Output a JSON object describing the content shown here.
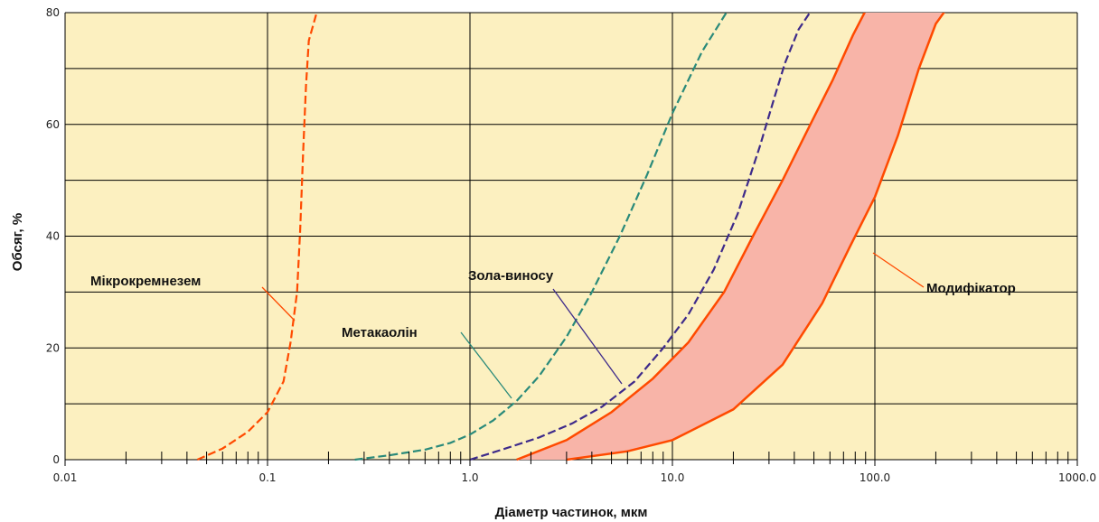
{
  "chart_data": {
    "type": "line",
    "title": "",
    "xlabel": "Діаметр частинок, мкм",
    "ylabel": "Обсяг, %",
    "x_scale": "log",
    "xlim": [
      0.01,
      1000.0
    ],
    "ylim": [
      0,
      80
    ],
    "x_tick_labels": [
      {
        "value": 0.01,
        "label": "0.01"
      },
      {
        "value": 0.1,
        "label": "0.1"
      },
      {
        "value": 1.0,
        "label": "1.0"
      },
      {
        "value": 10.0,
        "label": "10.0"
      },
      {
        "value": 100.0,
        "label": "100.0"
      },
      {
        "value": 1000.0,
        "label": "1000.0"
      }
    ],
    "y_tick_labels": [
      {
        "value": 0,
        "label": "0"
      },
      {
        "value": 20,
        "label": "20"
      },
      {
        "value": 40,
        "label": "40"
      },
      {
        "value": 60,
        "label": "60"
      },
      {
        "value": 80,
        "label": "80"
      }
    ],
    "y_gridlines": [
      0,
      10,
      20,
      30,
      40,
      50,
      60,
      70,
      80
    ],
    "grid": true,
    "background_color": "#fcf0c0",
    "series": [
      {
        "name": "Мікрокремнезем",
        "color": "#ff4a00",
        "style": "dashed",
        "x": [
          0.045,
          0.06,
          0.08,
          0.1,
          0.12,
          0.13,
          0.14,
          0.145,
          0.15,
          0.155,
          0.16,
          0.175,
          0.19
        ],
        "y": [
          0,
          2,
          5,
          8.5,
          14,
          21,
          30,
          41,
          55,
          67,
          75,
          80,
          82
        ]
      },
      {
        "name": "Метакаолін",
        "color": "#2a8a7a",
        "style": "dashed",
        "x": [
          0.27,
          0.4,
          0.6,
          0.8,
          1.0,
          1.3,
          1.7,
          2.2,
          3.0,
          4.0,
          5.5,
          7.5,
          10.0,
          14.0,
          20.0
        ],
        "y": [
          0,
          0.8,
          1.8,
          3,
          4.5,
          7,
          10.5,
          15,
          22,
          30,
          40,
          51,
          62,
          73,
          82
        ]
      },
      {
        "name": "Зола-виносу",
        "color": "#3d2a8a",
        "style": "dashed",
        "x": [
          1.0,
          1.5,
          2.2,
          3.2,
          4.5,
          6.5,
          9.0,
          12.0,
          16.0,
          21.0,
          27.0,
          32.0,
          36.0,
          42.0,
          52.0
        ],
        "y": [
          0,
          2,
          4,
          6.5,
          9.5,
          14,
          20,
          26,
          34,
          44,
          56,
          65,
          71,
          77,
          82
        ]
      },
      {
        "name": "Модифікатор",
        "color": "#ff4a00",
        "style": "solid",
        "fill_color": "#f8b4a8",
        "upper_x": [
          1.7,
          3.0,
          5.0,
          8.0,
          12.0,
          18.0,
          25.0,
          35.0,
          48.0,
          62.0,
          78.0,
          95.0
        ],
        "upper_y": [
          0,
          3.5,
          8.5,
          14.5,
          21,
          30,
          40,
          50,
          60,
          68,
          76,
          82
        ],
        "lower_x": [
          3.0,
          6.0,
          10.0,
          20.0,
          35.0,
          55.0,
          75.0,
          100.0,
          130.0,
          165.0,
          200.0,
          240.0
        ],
        "lower_y": [
          0,
          1.5,
          3.5,
          9,
          17,
          28,
          38,
          47,
          58,
          70,
          78,
          82
        ]
      }
    ],
    "annotations": [
      {
        "text": "Мікрокремнезем",
        "target_series": "Мікрокремнезем",
        "target_x": 0.145,
        "target_y": 27
      },
      {
        "text": "Метакаолін",
        "target_series": "Метакаолін",
        "target_x": 1.6,
        "target_y": 12.5
      },
      {
        "text": "Зола-виносу",
        "target_series": "Зола-виносу",
        "target_x": 7.5,
        "target_y": 15.5
      },
      {
        "text": "Модифікатор",
        "target_series": "Модифікатор",
        "target_x": 100,
        "target_y": 43
      }
    ]
  }
}
